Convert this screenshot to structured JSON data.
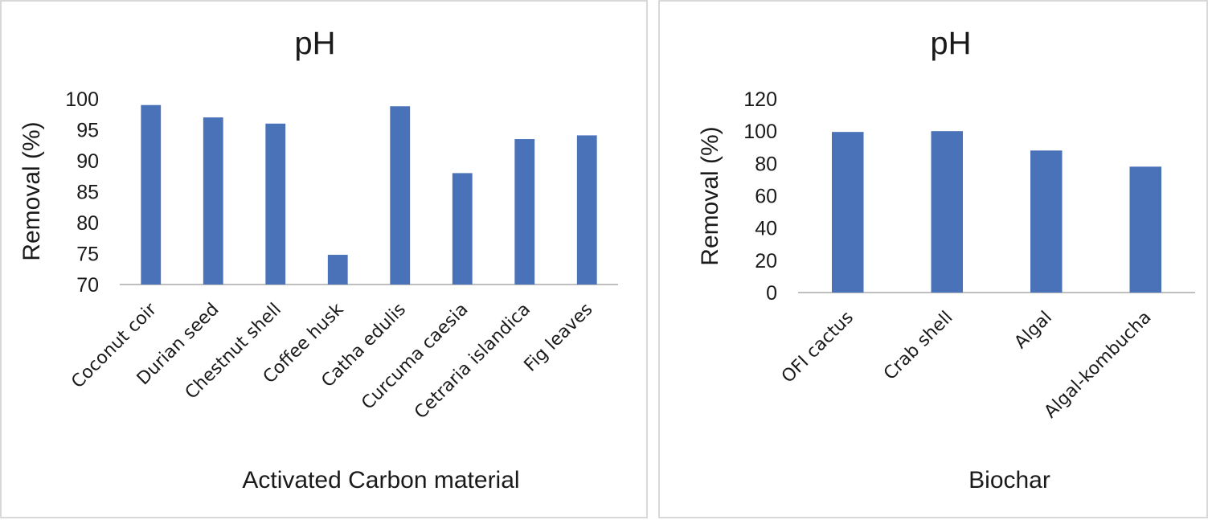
{
  "colors": {
    "bar": "#4a72b8",
    "axis": "#bfbfbf",
    "text": "#1a1a1a",
    "border": "#d9d9d9"
  },
  "chart_data": [
    {
      "type": "bar",
      "title": "pH",
      "xlabel": "Activated Carbon material",
      "ylabel": "Removal (%)",
      "ylim": [
        70,
        100
      ],
      "yticks": [
        "100",
        "95",
        "90",
        "85",
        "80",
        "75",
        "70"
      ],
      "grid": false,
      "categories": [
        "Coconut coir",
        "Durian seed",
        "Chestnut shell",
        "Coffee husk",
        "Catha edulis",
        "Curcuma caesia",
        "Cetraria islandica",
        "Fig leaves"
      ],
      "values": [
        99,
        97,
        96,
        74.8,
        98.8,
        88,
        93.5,
        94.1
      ]
    },
    {
      "type": "bar",
      "title": "pH",
      "xlabel": "Biochar",
      "ylabel": "Removal (%)",
      "ylim": [
        0,
        120
      ],
      "yticks": [
        "120",
        "100",
        "80",
        "60",
        "40",
        "20",
        "0"
      ],
      "grid": false,
      "categories": [
        "OFI cactus",
        "Crab shell",
        "Algal",
        "Algal-kombucha"
      ],
      "values": [
        99.5,
        100,
        88,
        78
      ]
    }
  ]
}
